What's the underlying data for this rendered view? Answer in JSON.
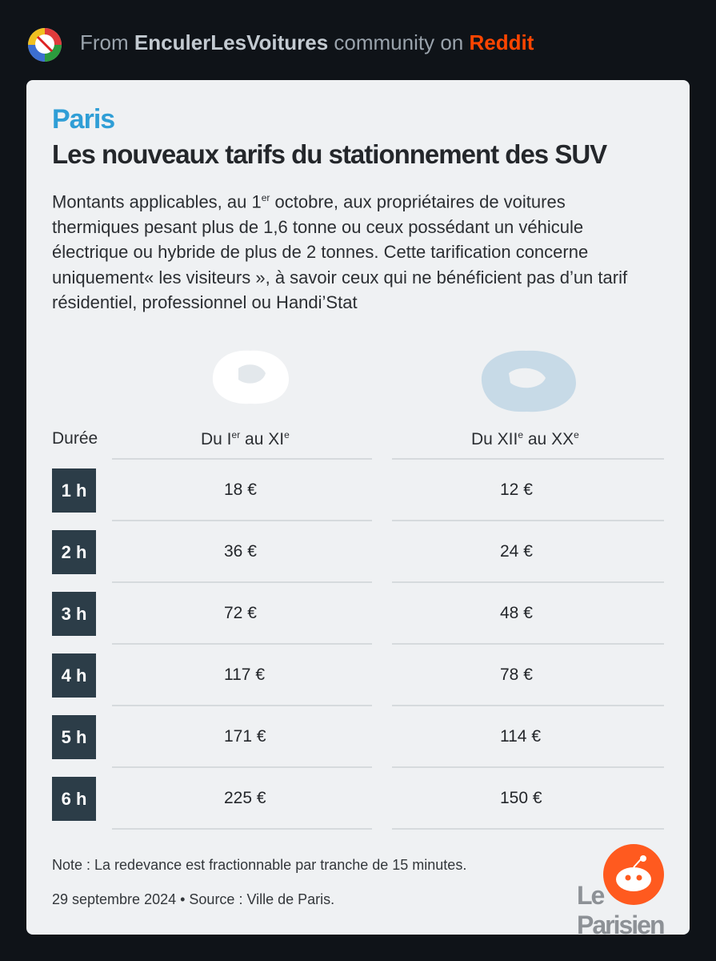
{
  "header": {
    "prefix": "From",
    "community": "EnculerLesVoitures",
    "middle": "community on",
    "site": "Reddit"
  },
  "card": {
    "kicker": "Paris",
    "title": "Les nouveaux tarifs du stationnement des SUV",
    "description": [
      "Montants applicables, au 1",
      "er",
      " octobre, aux propriétaires de voitures thermiques pesant plus de 1,6 tonne ou ceux possédant un véhicule électrique ou hybride de plus de 2 tonnes. Cette tarification concerne uniquement« les visiteurs », à savoir ceux qui ne bénéficient pas d’un tarif résidentiel, professionnel ou Handi’Stat"
    ],
    "table": {
      "headers": [
        [
          "Durée"
        ],
        [
          "Du I",
          "er",
          " au XI",
          "e"
        ],
        [
          "Du XII",
          "e",
          " au XX",
          "e"
        ]
      ],
      "rows": [
        [
          "1 h",
          "18 €",
          "12 €"
        ],
        [
          "2 h",
          "36 €",
          "24 €"
        ],
        [
          "3 h",
          "72 €",
          "48 €"
        ],
        [
          "4 h",
          "117 €",
          "78 €"
        ],
        [
          "5 h",
          "171 €",
          "114 €"
        ],
        [
          "6 h",
          "225 €",
          "150 €"
        ]
      ]
    },
    "note": "Note : La redevance est fractionnable par tranche de 15 minutes.",
    "source": "29 septembre 2024 • Source : Ville de Paris.",
    "logo": "Le Parisien"
  }
}
